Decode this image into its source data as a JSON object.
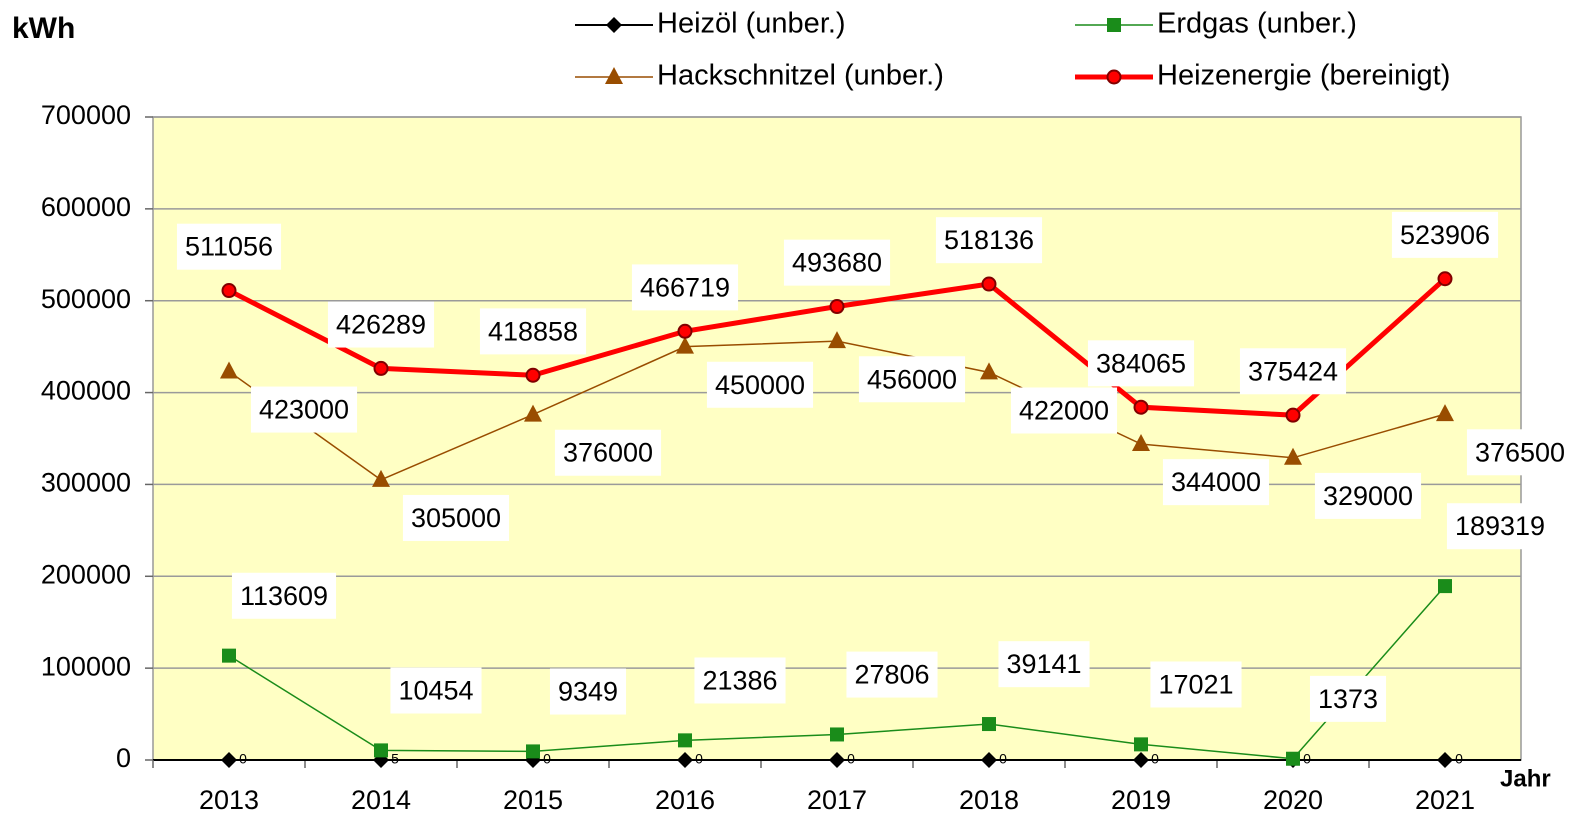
{
  "chart_data": {
    "type": "line",
    "y_label": "kWh",
    "x_label": "Jahr",
    "categories": [
      "2013",
      "2014",
      "2015",
      "2016",
      "2017",
      "2018",
      "2019",
      "2020",
      "2021"
    ],
    "series": [
      {
        "name": "Heizöl (unber.)",
        "color": "#000000",
        "marker": "diamond",
        "values": [
          0,
          5,
          0,
          0,
          0,
          0,
          0,
          0,
          0
        ]
      },
      {
        "name": "Erdgas (unber.)",
        "color": "#1a8c1a",
        "marker": "square",
        "values": [
          113609,
          10454,
          9349,
          21386,
          27806,
          39141,
          17021,
          1373,
          189319
        ]
      },
      {
        "name": "Hackschnitzel (unber.)",
        "color": "#994d00",
        "marker": "triangle",
        "values": [
          423000,
          305000,
          376000,
          450000,
          456000,
          422000,
          344000,
          329000,
          376500
        ]
      },
      {
        "name": "Heizenergie (bereinigt)",
        "color": "#ff0000",
        "marker": "circle",
        "values": [
          511056,
          426289,
          418858,
          466719,
          493680,
          518136,
          384065,
          375424,
          523906
        ]
      }
    ],
    "ylim": [
      0,
      700000
    ],
    "yticks": [
      0,
      100000,
      200000,
      300000,
      400000,
      500000,
      600000,
      700000
    ],
    "grid": true,
    "background": "#ffffc4"
  }
}
